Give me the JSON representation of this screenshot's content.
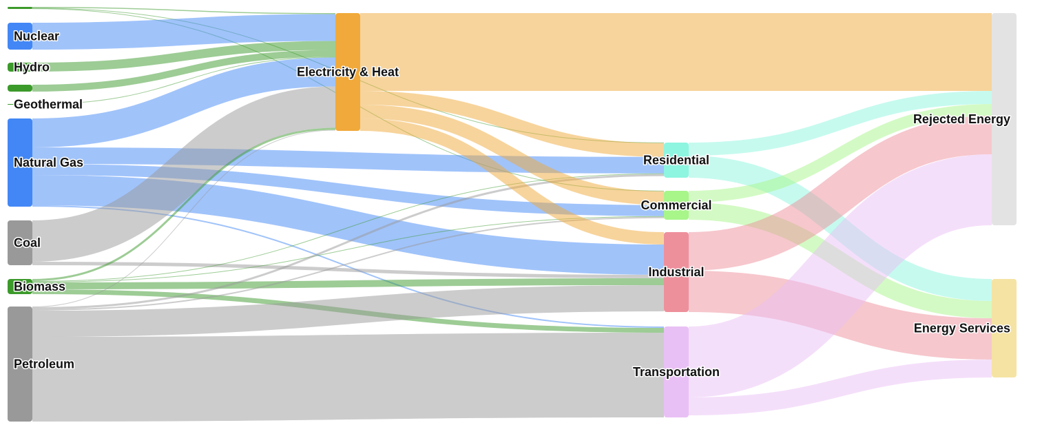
{
  "chart_data": {
    "type": "sankey",
    "title": "",
    "nodes": [
      {
        "label": "",
        "color": "#3c9a2b"
      },
      {
        "label": "Nuclear",
        "color": "#4287f5"
      },
      {
        "label": "Hydro",
        "color": "#3c9a2b"
      },
      {
        "label": "",
        "color": "#3c9a2b"
      },
      {
        "label": "Geothermal",
        "color": "#3c9a2b"
      },
      {
        "label": "Natural Gas",
        "color": "#4287f5"
      },
      {
        "label": "Coal",
        "color": "#999999"
      },
      {
        "label": "Biomass",
        "color": "#3c9a2b"
      },
      {
        "label": "Petroleum",
        "color": "#999999"
      },
      {
        "label": "Electricity & Heat",
        "color": "#f0a93a"
      },
      {
        "label": "Residential",
        "color": "#8ef5e0"
      },
      {
        "label": "Commercial",
        "color": "#a8f58a"
      },
      {
        "label": "Industrial",
        "color": "#ee909c"
      },
      {
        "label": "Transportation",
        "color": "#e9c0f5"
      },
      {
        "label": "Rejected Energy",
        "color": "#e3e3e3"
      },
      {
        "label": "Energy Services",
        "color": "#f5e3a3"
      }
    ],
    "links": [
      {
        "source": 0,
        "target": 9,
        "value": 1.5
      },
      {
        "source": 0,
        "target": 10,
        "value": 0.8
      },
      {
        "source": 0,
        "target": 11,
        "value": 0.7
      },
      {
        "source": 1,
        "target": 9,
        "value": 39
      },
      {
        "source": 2,
        "target": 9,
        "value": 13
      },
      {
        "source": 3,
        "target": 9,
        "value": 10
      },
      {
        "source": 4,
        "target": 9,
        "value": 1
      },
      {
        "source": 5,
        "target": 9,
        "value": 42
      },
      {
        "source": 5,
        "target": 10,
        "value": 24
      },
      {
        "source": 5,
        "target": 11,
        "value": 16
      },
      {
        "source": 5,
        "target": 12,
        "value": 44
      },
      {
        "source": 5,
        "target": 13,
        "value": 2
      },
      {
        "source": 6,
        "target": 9,
        "value": 60
      },
      {
        "source": 6,
        "target": 12,
        "value": 5
      },
      {
        "source": 7,
        "target": 9,
        "value": 3
      },
      {
        "source": 7,
        "target": 10,
        "value": 1
      },
      {
        "source": 7,
        "target": 11,
        "value": 1
      },
      {
        "source": 7,
        "target": 12,
        "value": 10
      },
      {
        "source": 7,
        "target": 13,
        "value": 7
      },
      {
        "source": 8,
        "target": 9,
        "value": 1
      },
      {
        "source": 8,
        "target": 10,
        "value": 3
      },
      {
        "source": 8,
        "target": 11,
        "value": 2
      },
      {
        "source": 8,
        "target": 12,
        "value": 38
      },
      {
        "source": 8,
        "target": 13,
        "value": 123
      },
      {
        "source": 9,
        "target": 14,
        "value": 113
      },
      {
        "source": 9,
        "target": 10,
        "value": 20
      },
      {
        "source": 9,
        "target": 11,
        "value": 20
      },
      {
        "source": 9,
        "target": 12,
        "value": 18
      },
      {
        "source": 10,
        "target": 14,
        "value": 19
      },
      {
        "source": 10,
        "target": 15,
        "value": 32
      },
      {
        "source": 11,
        "target": 14,
        "value": 17
      },
      {
        "source": 11,
        "target": 15,
        "value": 25
      },
      {
        "source": 12,
        "target": 14,
        "value": 56
      },
      {
        "source": 12,
        "target": 15,
        "value": 60
      },
      {
        "source": 13,
        "target": 14,
        "value": 103
      },
      {
        "source": 13,
        "target": 15,
        "value": 26
      }
    ]
  }
}
